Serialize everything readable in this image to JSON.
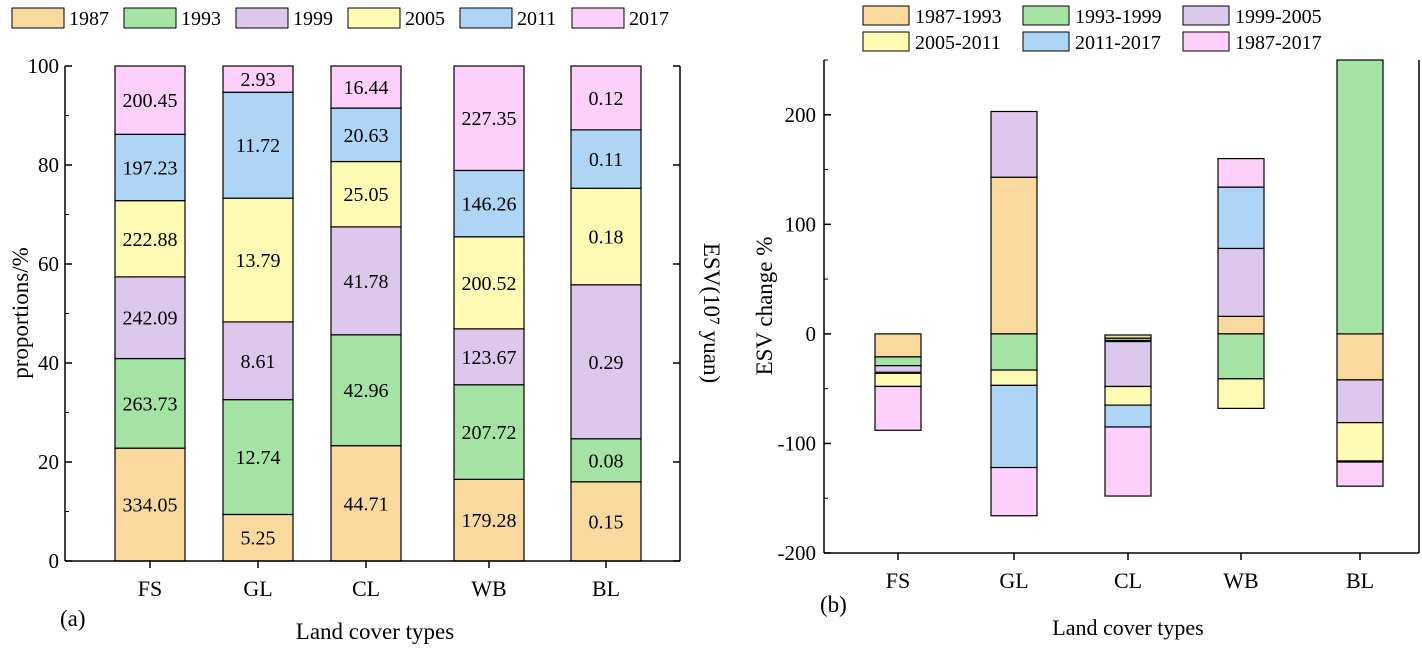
{
  "colors": {
    "orange": "#FAD99E",
    "green": "#A4E3A4",
    "purple": "#DCC8EC",
    "yellow": "#FFFBB4",
    "blue": "#AED5F6",
    "pink": "#FDD0FB"
  },
  "chart_data": [
    {
      "type": "bar",
      "stacked": true,
      "panel_label": "(a)",
      "xlabel": "Land cover types",
      "ylabel": "proportions/%",
      "ylabel_right": "ESV(10⁷ yuan)",
      "ylim": [
        0,
        100
      ],
      "yticks": [
        0,
        20,
        40,
        60,
        80,
        100
      ],
      "categories": [
        "FS",
        "GL",
        "CL",
        "WB",
        "BL"
      ],
      "legend_placement": "top",
      "series": [
        {
          "name": "1987",
          "color_key": "orange",
          "values": [
            22.8,
            9.4,
            23.3,
            16.5,
            16.0
          ],
          "labels": [
            "334.05",
            "5.25",
            "44.71",
            "179.28",
            "0.15"
          ]
        },
        {
          "name": "1993",
          "color_key": "green",
          "values": [
            18.1,
            23.2,
            22.4,
            19.1,
            8.7
          ],
          "labels": [
            "263.73",
            "12.74",
            "42.96",
            "207.72",
            "0.08"
          ]
        },
        {
          "name": "1999",
          "color_key": "purple",
          "values": [
            16.5,
            15.7,
            21.8,
            11.3,
            31.1
          ],
          "labels": [
            "242.09",
            "8.61",
            "41.78",
            "123.67",
            "0.29"
          ]
        },
        {
          "name": "2005",
          "color_key": "yellow",
          "values": [
            15.4,
            25.0,
            13.2,
            18.6,
            19.5
          ],
          "labels": [
            "222.88",
            "13.79",
            "25.05",
            "200.52",
            "0.18"
          ]
        },
        {
          "name": "2011",
          "color_key": "blue",
          "values": [
            13.4,
            21.4,
            10.8,
            13.4,
            11.8
          ],
          "labels": [
            "197.23",
            "11.72",
            "20.63",
            "146.26",
            "0.11"
          ]
        },
        {
          "name": "2017",
          "color_key": "pink",
          "values": [
            13.8,
            5.3,
            8.5,
            21.1,
            12.9
          ],
          "labels": [
            "200.45",
            "2.93",
            "16.44",
            "227.35",
            "0.12"
          ]
        }
      ]
    },
    {
      "type": "bar",
      "floating": true,
      "panel_label": "(b)",
      "xlabel": "Land cover types",
      "ylabel": "ESV change %",
      "ylim": [
        -200,
        250
      ],
      "yticks": [
        -200,
        -100,
        0,
        100,
        200
      ],
      "categories": [
        "FS",
        "GL",
        "CL",
        "WB",
        "BL"
      ],
      "legend_placement": "top",
      "legend_order": [
        "1987-1993",
        "1993-1999",
        "1999-2005",
        "2005-2011",
        "2011-2017",
        "1987-2017"
      ],
      "series": [
        {
          "name": "1987-1993",
          "color_key": "orange",
          "ranges": [
            [
              -21,
              0
            ],
            [
              0,
              143
            ],
            [
              -4,
              -1
            ],
            [
              0,
              16
            ],
            [
              -42,
              0
            ]
          ]
        },
        {
          "name": "1993-1999",
          "color_key": "green",
          "ranges": [
            [
              -29,
              -21
            ],
            [
              -33,
              0
            ],
            [
              -6,
              -4
            ],
            [
              -41,
              0
            ],
            [
              0,
              250
            ]
          ]
        },
        {
          "name": "1999-2005",
          "color_key": "purple",
          "ranges": [
            [
              -35,
              -29
            ],
            [
              143,
              203
            ],
            [
              -48,
              -7
            ],
            [
              16,
              78
            ],
            [
              -81,
              -42
            ]
          ]
        },
        {
          "name": "2005-2011",
          "color_key": "yellow",
          "ranges": [
            [
              -48,
              -36
            ],
            [
              -47,
              -33
            ],
            [
              -65,
              -48
            ],
            [
              -68,
              -41
            ],
            [
              -116,
              -81
            ]
          ]
        },
        {
          "name": "2011-2017",
          "color_key": "blue",
          "ranges": [
            [
              -48,
              -48
            ],
            [
              -122,
              -47
            ],
            [
              -85,
              -65
            ],
            [
              78,
              134
            ],
            [
              -116,
              -116
            ]
          ]
        },
        {
          "name": "1987-2017",
          "color_key": "pink",
          "ranges": [
            [
              -88,
              -48
            ],
            [
              -166,
              -122
            ],
            [
              -148,
              -85
            ],
            [
              134,
              160
            ],
            [
              -139,
              -117
            ]
          ]
        }
      ]
    }
  ]
}
